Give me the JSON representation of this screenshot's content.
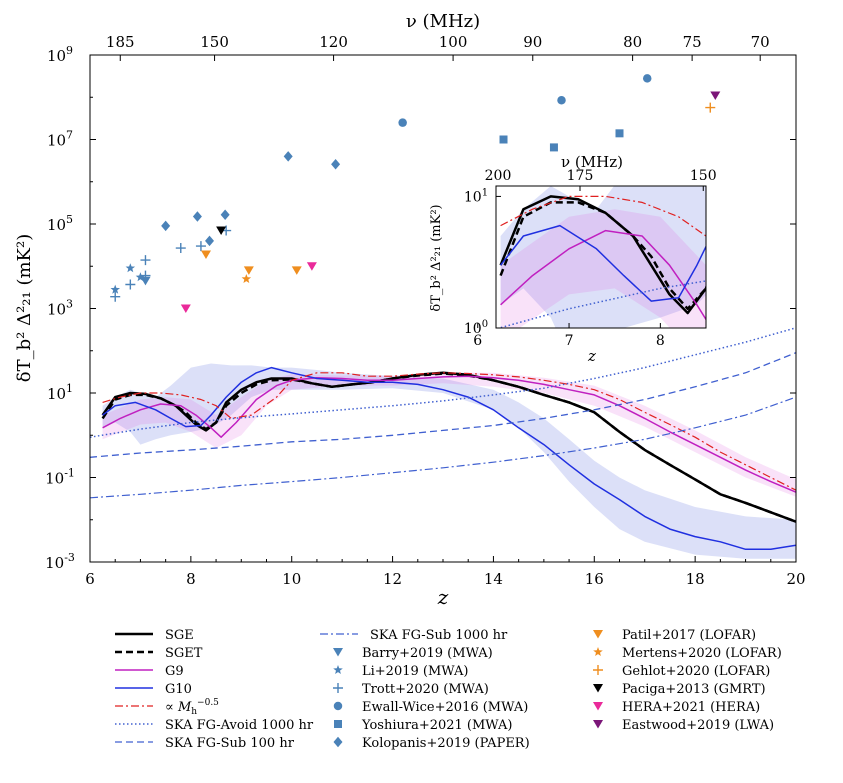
{
  "chart_data": {
    "type": "line",
    "xlabel": "z",
    "ylabel": "δT_b² Δ²₂₁ (mK²)",
    "top_axis_label": "ν (MHz)",
    "yscale": "log",
    "xlim": [
      6,
      20
    ],
    "ylim": [
      0.001,
      1000000000
    ],
    "x_ticks": [
      "6",
      "8",
      "10",
      "12",
      "14",
      "16",
      "18",
      "20"
    ],
    "y_ticks": [
      {
        "exp": "-3",
        "v": 0.001
      },
      {
        "exp": "-1",
        "v": 0.1
      },
      {
        "exp": "1",
        "v": 10
      },
      {
        "exp": "3",
        "v": 1000
      },
      {
        "exp": "5",
        "v": 100000
      },
      {
        "exp": "7",
        "v": 10000000
      },
      {
        "exp": "9",
        "v": 1000000000
      }
    ],
    "top_ticks": [
      {
        "label": "185",
        "z": 6.6
      },
      {
        "label": "150",
        "z": 8.47
      },
      {
        "label": "120",
        "z": 10.83
      },
      {
        "label": "100",
        "z": 13.2
      },
      {
        "label": "90",
        "z": 14.78
      },
      {
        "label": "80",
        "z": 16.76
      },
      {
        "label": "75",
        "z": 17.94
      },
      {
        "label": "70",
        "z": 19.29
      }
    ],
    "series": [
      {
        "name": "SGE",
        "color": "#000000",
        "style": "solid",
        "width": 2.5,
        "x": [
          6.25,
          6.5,
          6.8,
          7.1,
          7.4,
          7.7,
          7.9,
          8.1,
          8.3,
          8.5,
          8.7,
          9.0,
          9.3,
          9.6,
          10.0,
          10.4,
          10.8,
          11.2,
          11.6,
          12.0,
          12.5,
          13.0,
          13.5,
          14.0,
          14.5,
          15.0,
          15.5,
          16.0,
          16.5,
          17.0,
          17.5,
          18.0,
          18.5,
          19.0,
          19.5,
          20.0
        ],
        "y": [
          3,
          8,
          10,
          9.5,
          7.5,
          5,
          3,
          1.8,
          1.3,
          2,
          6,
          12,
          18,
          22,
          22,
          17,
          14,
          16,
          18,
          22,
          27,
          30,
          27,
          20,
          14,
          9,
          6,
          3.5,
          1.2,
          0.45,
          0.2,
          0.09,
          0.04,
          0.025,
          0.015,
          0.009
        ]
      },
      {
        "name": "SGET",
        "color": "#000000",
        "style": "dashed",
        "width": 2.5,
        "x": [
          6.25,
          6.5,
          6.8,
          7.1,
          7.4,
          7.7,
          7.9,
          8.1,
          8.3,
          8.5,
          8.7,
          9.0,
          9.3,
          9.6,
          10.0,
          10.4,
          10.8,
          11.2,
          11.6,
          12.0,
          12.5,
          13.0,
          13.5,
          14.0,
          14.5,
          15.0,
          15.5,
          16.0,
          16.5,
          17.0,
          17.5,
          18.0,
          18.5,
          19.0,
          19.5,
          20.0
        ],
        "y": [
          2.5,
          7,
          9,
          9,
          7.5,
          5,
          3.5,
          2,
          1.4,
          2,
          5,
          10,
          16,
          20,
          21,
          17,
          14,
          16,
          18,
          22,
          26,
          29,
          26,
          20,
          14,
          9,
          6,
          3.5,
          1.2,
          0.45,
          0.2,
          0.09,
          0.04,
          0.025,
          0.015,
          0.009
        ]
      },
      {
        "name": "G9",
        "color": "#c020c0",
        "style": "solid",
        "width": 1.5,
        "x": [
          6.25,
          6.6,
          7.0,
          7.4,
          7.8,
          8.1,
          8.4,
          8.6,
          8.9,
          9.3,
          9.7,
          10.0,
          10.5,
          11.0,
          11.5,
          12.0,
          12.5,
          13.0,
          13.5,
          14.0,
          14.5,
          15.0,
          15.5,
          16.0,
          16.5,
          17.0,
          17.5,
          18.0,
          18.5,
          19.0,
          19.5,
          20.0
        ],
        "y": [
          1.5,
          2.5,
          4,
          5.5,
          5,
          3,
          1.5,
          0.9,
          2,
          7,
          15,
          20,
          23,
          22,
          20,
          20,
          22,
          24,
          25,
          23,
          20,
          16,
          12,
          9,
          5,
          2.5,
          1.2,
          0.6,
          0.3,
          0.15,
          0.08,
          0.045
        ]
      },
      {
        "name": "G10",
        "color": "#2030e0",
        "style": "solid",
        "width": 1.5,
        "x": [
          6.25,
          6.5,
          6.9,
          7.3,
          7.6,
          7.9,
          8.2,
          8.4,
          8.7,
          9.0,
          9.3,
          9.6,
          10.0,
          10.5,
          11.0,
          11.5,
          12.0,
          12.5,
          13.0,
          13.5,
          14.0,
          14.5,
          15.0,
          15.5,
          16.0,
          16.5,
          17.0,
          17.5,
          18.0,
          18.5,
          19.0,
          19.5,
          20.0
        ],
        "y": [
          3,
          5,
          6,
          4,
          2.5,
          1.6,
          1.7,
          3,
          8,
          18,
          30,
          40,
          30,
          22,
          20,
          18,
          18,
          16,
          12,
          8,
          4,
          1.5,
          0.6,
          0.2,
          0.07,
          0.03,
          0.012,
          0.006,
          0.004,
          0.003,
          0.002,
          0.002,
          0.0025
        ]
      },
      {
        "name": "∝ M_h^{-0.5}",
        "color": "#e02020",
        "style": "dashdot",
        "width": 1.2,
        "x": [
          6.25,
          6.6,
          7.0,
          7.4,
          7.8,
          8.2,
          8.5,
          8.8,
          9.2,
          9.7,
          10.0,
          10.5,
          11.0,
          11.5,
          12.0,
          12.5,
          13.0,
          13.5,
          14.0,
          14.5,
          15.0,
          15.5,
          16.0,
          16.5,
          17.0,
          17.5,
          18.0,
          18.5,
          19.0,
          19.5,
          20.0
        ],
        "y": [
          6,
          8,
          10,
          10,
          9,
          7,
          5,
          2.5,
          3,
          8,
          20,
          30,
          30,
          25,
          25,
          28,
          30,
          29,
          27,
          24,
          20,
          16,
          12,
          7,
          3.5,
          1.8,
          0.9,
          0.4,
          0.2,
          0.1,
          0.05
        ]
      },
      {
        "name": "SKA FG-Avoid 1000 hr",
        "color": "#4060d0",
        "style": "dotted",
        "width": 1.5,
        "x": [
          6.0,
          7.0,
          8.0,
          9.0,
          10.0,
          11.0,
          12.0,
          13.0,
          14.0,
          15.0,
          16.0,
          17.0,
          18.0,
          19.0,
          20.0
        ],
        "y": [
          0.9,
          1.4,
          2,
          2.6,
          3.2,
          4,
          5,
          6.5,
          9,
          13,
          22,
          40,
          80,
          160,
          350
        ]
      },
      {
        "name": "SKA FG-Sub 100 hr",
        "color": "#4060d0",
        "style": "dashed",
        "width": 1.3,
        "x": [
          6.0,
          7.0,
          8.0,
          9.0,
          10.0,
          11.0,
          12.0,
          13.0,
          14.0,
          15.0,
          16.0,
          17.0,
          18.0,
          19.0,
          20.0
        ],
        "y": [
          0.3,
          0.38,
          0.45,
          0.55,
          0.7,
          0.8,
          1,
          1.3,
          1.7,
          2.5,
          4,
          7,
          14,
          30,
          90
        ]
      },
      {
        "name": "SKA FG-Sub 1000 hr",
        "color": "#4060d0",
        "style": "dashdot",
        "width": 1.2,
        "x": [
          6.0,
          7.0,
          8.0,
          9.0,
          10.0,
          11.0,
          12.0,
          13.0,
          14.0,
          15.0,
          16.0,
          17.0,
          18.0,
          19.0,
          20.0
        ],
        "y": [
          0.033,
          0.04,
          0.05,
          0.065,
          0.08,
          0.1,
          0.13,
          0.17,
          0.23,
          0.33,
          0.5,
          0.8,
          1.5,
          3,
          8
        ]
      }
    ],
    "bands": [
      {
        "color": "#6070e0",
        "opacity": 0.22,
        "x": [
          6.25,
          6.5,
          6.8,
          7.0,
          7.3,
          7.6,
          8.0,
          8.4,
          8.8,
          9.2,
          9.6,
          10.0,
          10.5,
          11.0,
          12.0,
          13.0,
          14.0,
          14.5,
          15.0,
          15.5,
          16.0,
          16.5,
          17.0,
          18.0,
          19.0,
          20.0
        ],
        "lo": [
          1.5,
          2,
          1.2,
          0.6,
          0.8,
          1,
          1.2,
          1.5,
          3,
          8,
          12,
          12,
          12,
          12,
          13,
          10,
          4,
          1.5,
          0.4,
          0.08,
          0.02,
          0.006,
          0.003,
          0.0015,
          0.0012,
          0.0012
        ],
        "hi": [
          5,
          8,
          12,
          10,
          8,
          15,
          40,
          50,
          45,
          45,
          40,
          40,
          35,
          30,
          25,
          22,
          12,
          6,
          2.5,
          0.8,
          0.25,
          0.1,
          0.05,
          0.02,
          0.012,
          0.01
        ]
      },
      {
        "color": "#e060e0",
        "opacity": 0.18,
        "x": [
          6.25,
          7.0,
          7.5,
          8.0,
          8.5,
          9.0,
          9.5,
          10.0,
          11.0,
          12.0,
          13.0,
          14.0,
          15.0,
          16.0,
          17.0,
          18.0,
          19.0,
          20.0
        ],
        "lo": [
          0.8,
          1.8,
          2,
          1.2,
          0.5,
          1,
          5,
          12,
          15,
          15,
          17,
          14,
          10,
          5,
          1.6,
          0.4,
          0.1,
          0.035
        ],
        "hi": [
          3,
          7,
          8,
          7,
          3,
          8,
          20,
          28,
          26,
          26,
          30,
          30,
          23,
          15,
          5,
          1.3,
          0.3,
          0.09
        ]
      }
    ],
    "observations": [
      {
        "name": "Barry+2019 (MWA)",
        "marker": "v",
        "color": "#4a82b8",
        "points": [
          [
            7.1,
            4500
          ]
        ]
      },
      {
        "name": "Li+2019 (MWA)",
        "marker": "star",
        "color": "#4a82b8",
        "points": [
          [
            6.5,
            2800
          ],
          [
            6.8,
            9000
          ],
          [
            7.0,
            5500
          ]
        ]
      },
      {
        "name": "Trott+2020 (MWA)",
        "marker": "plus",
        "color": "#4a82b8",
        "points": [
          [
            6.5,
            1900
          ],
          [
            6.8,
            3700
          ],
          [
            7.1,
            6000
          ],
          [
            7.1,
            14000
          ],
          [
            7.8,
            27000
          ],
          [
            8.2,
            30000
          ],
          [
            8.7,
            70000
          ]
        ]
      },
      {
        "name": "Ewall-Wice+2016 (MWA)",
        "marker": "circle",
        "color": "#4a82b8",
        "points": [
          [
            12.2,
            25000000
          ],
          [
            15.35,
            85000000
          ],
          [
            17.05,
            280000000
          ]
        ]
      },
      {
        "name": "Yoshiura+2021 (MWA)",
        "marker": "square",
        "color": "#4a82b8",
        "points": [
          [
            14.2,
            10000000
          ],
          [
            15.2,
            6500000
          ],
          [
            16.5,
            14000000
          ]
        ]
      },
      {
        "name": "Kolopanis+2019 (PAPER)",
        "marker": "diamond",
        "color": "#4a82b8",
        "points": [
          [
            7.5,
            90000
          ],
          [
            8.13,
            150000
          ],
          [
            8.37,
            40000
          ],
          [
            8.68,
            165000
          ],
          [
            9.93,
            4000000
          ],
          [
            10.87,
            2600000
          ]
        ]
      },
      {
        "name": "Patil+2017 (LOFAR)",
        "marker": "v",
        "color": "#ef8e1f",
        "points": [
          [
            8.3,
            19000
          ],
          [
            9.15,
            8000
          ],
          [
            10.1,
            8000
          ]
        ]
      },
      {
        "name": "Mertens+2020 (LOFAR)",
        "marker": "star",
        "color": "#ef8e1f",
        "points": [
          [
            9.1,
            5000
          ]
        ]
      },
      {
        "name": "Gehlot+2020 (LOFAR)",
        "marker": "plus",
        "color": "#ef8e1f",
        "points": [
          [
            18.3,
            57000000
          ]
        ]
      },
      {
        "name": "Paciga+2013 (GMRT)",
        "marker": "v",
        "color": "#000000",
        "points": [
          [
            8.6,
            70000
          ]
        ]
      },
      {
        "name": "HERA+2021 (HERA)",
        "marker": "v",
        "color": "#ea2a9a",
        "points": [
          [
            7.9,
            1000
          ],
          [
            10.4,
            10000
          ]
        ]
      },
      {
        "name": "Eastwood+2019 (LWA)",
        "marker": "v",
        "color": "#7b1678",
        "points": [
          [
            18.4,
            110000000
          ]
        ]
      }
    ],
    "inset": {
      "xlabel": "z",
      "ylabel": "δT_b² Δ²₂₁ (mK²)",
      "top_axis_label": "ν (MHz)",
      "xlim": [
        6.2,
        8.5
      ],
      "ylim": [
        1,
        12
      ],
      "x_ticks": [
        "6",
        "7",
        "8"
      ],
      "top_ticks": [
        {
          "label": "200",
          "z": 6.1
        },
        {
          "label": "175",
          "z": 7.12
        },
        {
          "label": "150",
          "z": 8.47
        }
      ]
    },
    "legend_placement": "bottom (three columns below plot)"
  }
}
